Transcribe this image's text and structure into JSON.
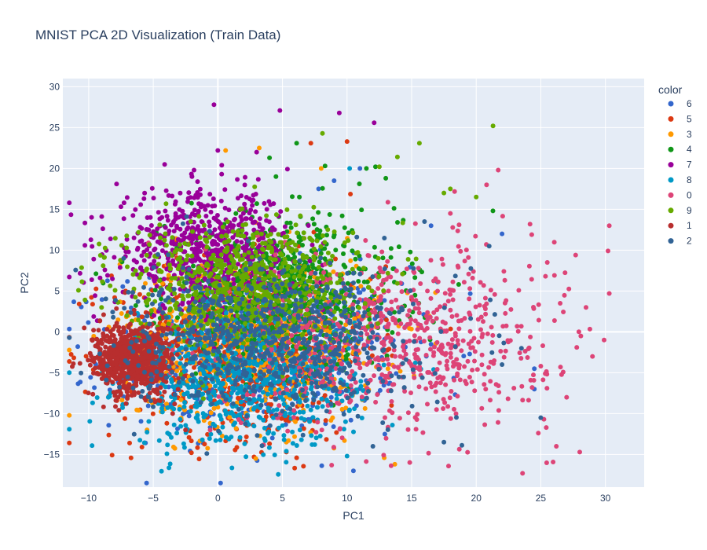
{
  "chart_data": {
    "type": "scatter",
    "title": "MNIST PCA 2D Visualization (Train Data)",
    "xlabel": "PC1",
    "ylabel": "PC2",
    "xlim": [
      -12,
      33
    ],
    "ylim": [
      -19,
      31
    ],
    "xticks": [
      -10,
      -5,
      0,
      5,
      10,
      15,
      20,
      25,
      30
    ],
    "yticks": [
      -15,
      -10,
      -5,
      0,
      5,
      10,
      15,
      20,
      25,
      30
    ],
    "grid": true,
    "legend": {
      "title": "color",
      "position": "right"
    },
    "series": [
      {
        "name": "6",
        "color": "#3366cc",
        "cluster": {
          "cx": 3,
          "cy": -2,
          "sx": 5.5,
          "sy": 5.0
        },
        "points": [
          [
            11,
            20
          ],
          [
            16.5,
            13
          ],
          [
            22,
            12
          ],
          [
            24.5,
            -4.5
          ],
          [
            24.5,
            -7
          ],
          [
            9,
            18.5
          ],
          [
            7.8,
            17.5
          ]
        ]
      },
      {
        "name": "5",
        "color": "#dc3912",
        "cluster": {
          "cx": 2,
          "cy": -2,
          "sx": 5.0,
          "sy": 5.5
        },
        "points": [
          [
            10,
            23.3
          ],
          [
            7.2,
            23.1
          ],
          [
            2.8,
            -15.3
          ],
          [
            6.1,
            -15.4
          ],
          [
            11.8,
            -2
          ],
          [
            13,
            8
          ],
          [
            15,
            4
          ]
        ]
      },
      {
        "name": "3",
        "color": "#ff9900",
        "cluster": {
          "cx": 2.5,
          "cy": -1,
          "sx": 5.0,
          "sy": 5.0
        },
        "points": [
          [
            0.6,
            22.2
          ],
          [
            13.7,
            -16.2
          ],
          [
            8,
            20
          ],
          [
            5.3,
            -13.5
          ],
          [
            3.2,
            22.5
          ],
          [
            6,
            -11
          ]
        ]
      },
      {
        "name": "4",
        "color": "#109618",
        "cluster": {
          "cx": 5,
          "cy": 5,
          "sx": 4.5,
          "sy": 4.5
        },
        "points": [
          [
            6.1,
            23.1
          ],
          [
            4,
            21.3
          ],
          [
            8.3,
            20.3
          ],
          [
            12.2,
            20.2
          ],
          [
            13,
            18.8
          ],
          [
            11.5,
            20
          ],
          [
            4.5,
            19
          ]
        ]
      },
      {
        "name": "7",
        "color": "#990099",
        "cluster": {
          "cx": -1,
          "cy": 10,
          "sx": 3.5,
          "sy": 3.5
        },
        "points": [
          [
            -0.3,
            27.8
          ],
          [
            4.8,
            27.1
          ],
          [
            9.4,
            26.8
          ],
          [
            12.1,
            25.6
          ],
          [
            0,
            22.2
          ],
          [
            3,
            22
          ],
          [
            -2,
            19
          ]
        ]
      },
      {
        "name": "8",
        "color": "#0099c6",
        "cluster": {
          "cx": 2,
          "cy": -6,
          "sx": 4.5,
          "sy": 4.0
        },
        "points": [
          [
            10.2,
            20
          ],
          [
            5.3,
            -14.6
          ],
          [
            10,
            -15.2
          ],
          [
            -1.2,
            -13.2
          ],
          [
            7.5,
            -13.8
          ],
          [
            17,
            6.1
          ]
        ]
      },
      {
        "name": "0",
        "color": "#dd4477",
        "cluster": {
          "cx": 14,
          "cy": -1,
          "sx": 6.0,
          "sy": 5.5
        },
        "points": [
          [
            30.3,
            13.0
          ],
          [
            30.2,
            9.9
          ],
          [
            30.3,
            4.7
          ],
          [
            29.9,
            -1.0
          ],
          [
            28.1,
            -0.5
          ],
          [
            27.7,
            9.4
          ],
          [
            26.2,
            -14
          ],
          [
            25.5,
            8.5
          ],
          [
            24.3,
            11.9
          ],
          [
            21.7,
            19.8
          ],
          [
            20.8,
            18
          ],
          [
            12.7,
            9.8
          ],
          [
            18,
            14.5
          ],
          [
            28.5,
            3
          ],
          [
            26.5,
            3.5
          ],
          [
            29,
            -3
          ],
          [
            27,
            -8
          ]
        ]
      },
      {
        "name": "9",
        "color": "#66aa00",
        "cluster": {
          "cx": 2,
          "cy": 6,
          "sx": 4.5,
          "sy": 4.0
        },
        "points": [
          [
            21.3,
            25.2
          ],
          [
            15.6,
            23.1
          ],
          [
            8.1,
            24.3
          ],
          [
            13.9,
            21.4
          ],
          [
            12.5,
            20.2
          ],
          [
            18,
            17.5
          ],
          [
            17.5,
            17
          ],
          [
            20,
            16.5
          ],
          [
            -9,
            3
          ]
        ]
      },
      {
        "name": "1",
        "color": "#b82e2e",
        "cluster": {
          "cx": -6.5,
          "cy": -3.5,
          "sx": 1.6,
          "sy": 2.2
        },
        "points": [
          [
            -9.3,
            -1.5
          ],
          [
            -3.5,
            -10
          ],
          [
            -2.5,
            -12
          ],
          [
            -5.5,
            -8
          ]
        ]
      },
      {
        "name": "2",
        "color": "#316395",
        "cluster": {
          "cx": 4,
          "cy": -1,
          "sx": 5.5,
          "sy": 4.5
        },
        "points": [
          [
            25,
            -10.5
          ],
          [
            22,
            -4
          ],
          [
            23.5,
            -2
          ],
          [
            12,
            -14
          ],
          [
            17.5,
            -13.5
          ],
          [
            16,
            13.5
          ],
          [
            21,
            10.5
          ]
        ]
      }
    ]
  }
}
